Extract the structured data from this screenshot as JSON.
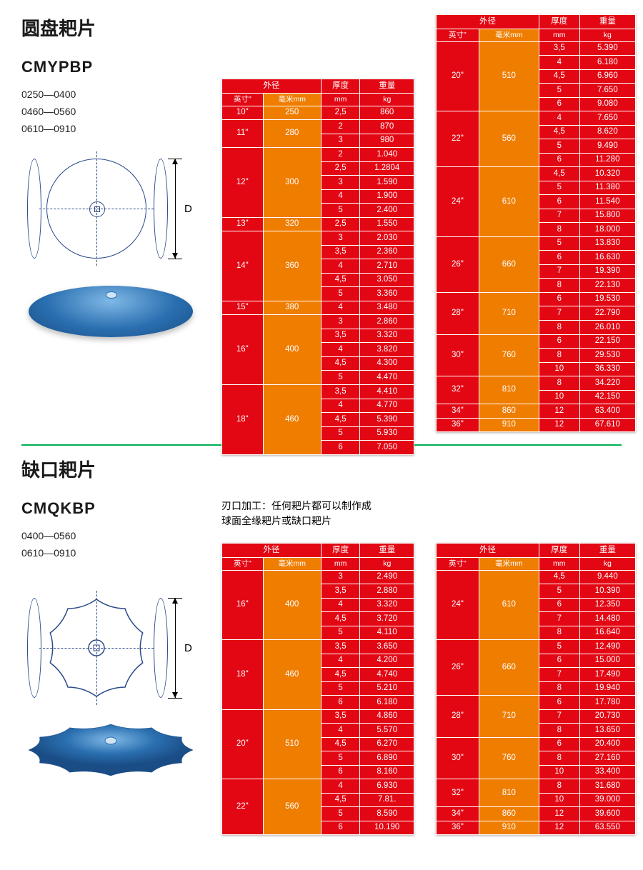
{
  "colors": {
    "table_primary": "#e30613",
    "table_accent": "#ef7d00",
    "border": "#ffffff",
    "divider": "#00b050",
    "diagram_line": "#2b4a8b",
    "photo_gradient": [
      "#7fb8e6",
      "#2a6fb0",
      "#1a4d85"
    ]
  },
  "header_labels": {
    "outer_diameter": "外径",
    "inch": "英寸\"",
    "mm": "毫米mm",
    "thickness": "厚度",
    "thickness_unit": "mm",
    "weight": "重量",
    "weight_unit": "kg"
  },
  "section1": {
    "title_cn": "圆盘耙片",
    "model": "CMYPBP",
    "codes": [
      "0250—0400",
      "0460—0560",
      "0610—0910"
    ],
    "dim_label": "D",
    "table_a": {
      "groups": [
        {
          "inch": "10\"",
          "mm": "250",
          "rows": [
            [
              "2,5",
              "860"
            ]
          ]
        },
        {
          "inch": "11\"",
          "mm": "280",
          "rows": [
            [
              "2",
              "870"
            ],
            [
              "3",
              "980"
            ]
          ]
        },
        {
          "inch": "12\"",
          "mm": "300",
          "rows": [
            [
              "2",
              "1.040"
            ],
            [
              "2,5",
              "1.2804"
            ],
            [
              "3",
              "1.590"
            ],
            [
              "4",
              "1.900"
            ],
            [
              "5",
              "2.400"
            ]
          ]
        },
        {
          "inch": "13\"",
          "mm": "320",
          "rows": [
            [
              "2,5",
              "1.550"
            ]
          ]
        },
        {
          "inch": "14\"",
          "mm": "360",
          "rows": [
            [
              "3",
              "2.030"
            ],
            [
              "3,5",
              "2.360"
            ],
            [
              "4",
              "2.710"
            ],
            [
              "4,5",
              "3.050"
            ],
            [
              "5",
              "3.360"
            ]
          ]
        },
        {
          "inch": "15\"",
          "mm": "380",
          "rows": [
            [
              "4",
              "3.480"
            ]
          ]
        },
        {
          "inch": "16\"",
          "mm": "400",
          "rows": [
            [
              "3",
              "2.860"
            ],
            [
              "3,5",
              "3.320"
            ],
            [
              "4",
              "3.820"
            ],
            [
              "4,5",
              "4.300"
            ],
            [
              "5",
              "4.470"
            ]
          ]
        },
        {
          "inch": "18\"",
          "mm": "460",
          "rows": [
            [
              "3,5",
              "4.410"
            ],
            [
              "4",
              "4.770"
            ],
            [
              "4,5",
              "5.390"
            ],
            [
              "5",
              "5.930"
            ],
            [
              "6",
              "7.050"
            ]
          ]
        }
      ]
    },
    "table_b": {
      "groups": [
        {
          "inch": "20\"",
          "mm": "510",
          "rows": [
            [
              "3,5",
              "5.390"
            ],
            [
              "4",
              "6.180"
            ],
            [
              "4,5",
              "6.960"
            ],
            [
              "5",
              "7.650"
            ],
            [
              "6",
              "9.080"
            ]
          ]
        },
        {
          "inch": "22\"",
          "mm": "560",
          "rows": [
            [
              "4",
              "7.650"
            ],
            [
              "4,5",
              "8.620"
            ],
            [
              "5",
              "9.490"
            ],
            [
              "6",
              "11.280"
            ]
          ]
        },
        {
          "inch": "24\"",
          "mm": "610",
          "rows": [
            [
              "4,5",
              "10.320"
            ],
            [
              "5",
              "11.380"
            ],
            [
              "6",
              "11.540"
            ],
            [
              "7",
              "15.800"
            ],
            [
              "8",
              "18.000"
            ]
          ]
        },
        {
          "inch": "26\"",
          "mm": "660",
          "rows": [
            [
              "5",
              "13.830"
            ],
            [
              "6",
              "16.630"
            ],
            [
              "7",
              "19.390"
            ],
            [
              "8",
              "22.130"
            ]
          ]
        },
        {
          "inch": "28\"",
          "mm": "710",
          "rows": [
            [
              "6",
              "19.530"
            ],
            [
              "7",
              "22.790"
            ],
            [
              "8",
              "26.010"
            ]
          ]
        },
        {
          "inch": "30\"",
          "mm": "760",
          "rows": [
            [
              "6",
              "22.150"
            ],
            [
              "8",
              "29.530"
            ],
            [
              "10",
              "36.330"
            ]
          ]
        },
        {
          "inch": "32\"",
          "mm": "810",
          "rows": [
            [
              "8",
              "34.220"
            ],
            [
              "10",
              "42.150"
            ]
          ]
        },
        {
          "inch": "34\"",
          "mm": "860",
          "rows": [
            [
              "12",
              "63.400"
            ]
          ]
        },
        {
          "inch": "36\"",
          "mm": "910",
          "rows": [
            [
              "12",
              "67.610"
            ]
          ]
        }
      ]
    }
  },
  "section2": {
    "title_cn": "缺口耙片",
    "model": "CMQKBP",
    "codes": [
      "0400—0560",
      "0610—0910"
    ],
    "note_line1": "刃口加工：任何耙片都可以制作成",
    "note_line2": "球面全缘耙片或缺口耙片",
    "dim_label": "D",
    "table_c": {
      "groups": [
        {
          "inch": "16\"",
          "mm": "400",
          "rows": [
            [
              "3",
              "2.490"
            ],
            [
              "3,5",
              "2.880"
            ],
            [
              "4",
              "3.320"
            ],
            [
              "4,5",
              "3.720"
            ],
            [
              "5",
              "4.110"
            ]
          ]
        },
        {
          "inch": "18\"",
          "mm": "460",
          "rows": [
            [
              "3,5",
              "3.650"
            ],
            [
              "4",
              "4.200"
            ],
            [
              "4,5",
              "4.740"
            ],
            [
              "5",
              "5.210"
            ],
            [
              "6",
              "6.180"
            ]
          ]
        },
        {
          "inch": "20\"",
          "mm": "510",
          "rows": [
            [
              "3,5",
              "4.860"
            ],
            [
              "4",
              "5.570"
            ],
            [
              "4,5",
              "6.270"
            ],
            [
              "5",
              "6.890"
            ],
            [
              "6",
              "8.160"
            ]
          ]
        },
        {
          "inch": "22\"",
          "mm": "560",
          "rows": [
            [
              "4",
              "6.930"
            ],
            [
              "4,5",
              "7.81."
            ],
            [
              "5",
              "8.590"
            ],
            [
              "6",
              "10.190"
            ]
          ]
        }
      ]
    },
    "table_d": {
      "groups": [
        {
          "inch": "24\"",
          "mm": "610",
          "rows": [
            [
              "4,5",
              "9.440"
            ],
            [
              "5",
              "10.390"
            ],
            [
              "6",
              "12.350"
            ],
            [
              "7",
              "14.480"
            ],
            [
              "8",
              "16.640"
            ]
          ]
        },
        {
          "inch": "26\"",
          "mm": "660",
          "rows": [
            [
              "5",
              "12.490"
            ],
            [
              "6",
              "15.000"
            ],
            [
              "7",
              "17.490"
            ],
            [
              "8",
              "19.940"
            ]
          ]
        },
        {
          "inch": "28\"",
          "mm": "710",
          "rows": [
            [
              "6",
              "17.780"
            ],
            [
              "7",
              "20.730"
            ],
            [
              "8",
              "13.650"
            ]
          ]
        },
        {
          "inch": "30\"",
          "mm": "760",
          "rows": [
            [
              "6",
              "20.400"
            ],
            [
              "8",
              "27.160"
            ],
            [
              "10",
              "33.400"
            ]
          ]
        },
        {
          "inch": "32\"",
          "mm": "810",
          "rows": [
            [
              "8",
              "31.680"
            ],
            [
              "10",
              "39.000"
            ]
          ]
        },
        {
          "inch": "34\"",
          "mm": "860",
          "rows": [
            [
              "12",
              "39.600"
            ]
          ]
        },
        {
          "inch": "36\"",
          "mm": "910",
          "rows": [
            [
              "12",
              "63.550"
            ]
          ]
        }
      ]
    }
  }
}
